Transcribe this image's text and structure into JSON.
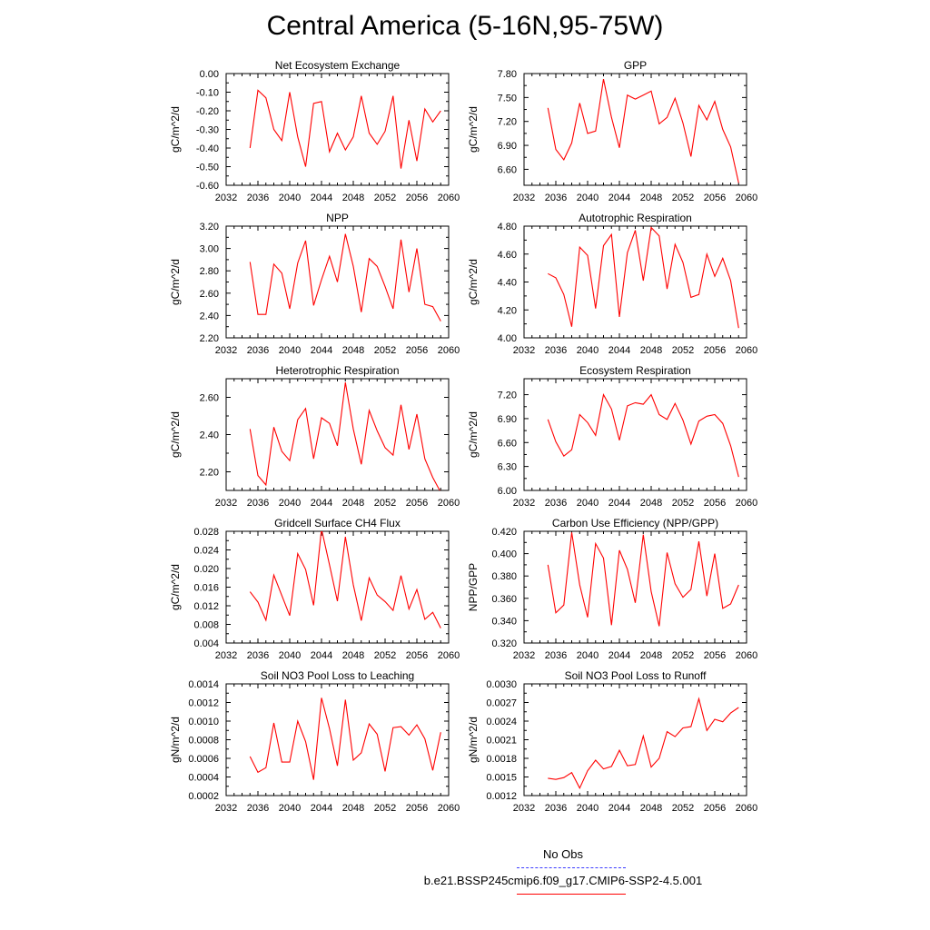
{
  "title": "Central America (5-16N,95-75W)",
  "colors": {
    "model_line": "#ff0000",
    "obs_line": "#3b3bff"
  },
  "legend": {
    "obs_label": "No Obs",
    "model_label": "b.e21.BSSP245cmip6.f09_g17.CMIP6-SSP2-4.5.001"
  },
  "chart_data": [
    {
      "type": "line",
      "title": "Net Ecosystem Exchange",
      "ylabel": "gC/m^2/d",
      "xlim": [
        2032,
        2060
      ],
      "ylim": [
        -0.6,
        0.0
      ],
      "yticks": [
        "0.00",
        "-0.10",
        "-0.20",
        "-0.30",
        "-0.40",
        "-0.50",
        "-0.60"
      ],
      "ytick_values": [
        0.0,
        -0.1,
        -0.2,
        -0.3,
        -0.4,
        -0.5,
        -0.6
      ],
      "xticks": [
        "2032",
        "2036",
        "2040",
        "2044",
        "2048",
        "2052",
        "2056",
        "2060"
      ],
      "x": [
        2035,
        2036,
        2037,
        2038,
        2039,
        2040,
        2041,
        2042,
        2043,
        2044,
        2045,
        2046,
        2047,
        2048,
        2049,
        2050,
        2051,
        2052,
        2053,
        2054,
        2055,
        2056,
        2057,
        2058,
        2059
      ],
      "values": [
        -0.4,
        -0.09,
        -0.13,
        -0.3,
        -0.36,
        -0.1,
        -0.34,
        -0.5,
        -0.16,
        -0.15,
        -0.42,
        -0.32,
        -0.41,
        -0.34,
        -0.12,
        -0.32,
        -0.38,
        -0.31,
        -0.12,
        -0.51,
        -0.25,
        -0.47,
        -0.19,
        -0.26,
        -0.2
      ]
    },
    {
      "type": "line",
      "title": "GPP",
      "ylabel": "gC/m^2/d",
      "xlim": [
        2032,
        2060
      ],
      "ylim": [
        6.4,
        7.8
      ],
      "yticks": [
        "7.80",
        "7.50",
        "7.20",
        "6.90",
        "6.60"
      ],
      "ytick_values": [
        7.8,
        7.5,
        7.2,
        6.9,
        6.6
      ],
      "xticks": [
        "2032",
        "2036",
        "2040",
        "2044",
        "2048",
        "2052",
        "2056",
        "2060"
      ],
      "x": [
        2035,
        2036,
        2037,
        2038,
        2039,
        2040,
        2041,
        2042,
        2043,
        2044,
        2045,
        2046,
        2047,
        2048,
        2049,
        2050,
        2051,
        2052,
        2053,
        2054,
        2055,
        2056,
        2057,
        2058,
        2059
      ],
      "values": [
        7.37,
        6.85,
        6.72,
        6.93,
        7.43,
        7.05,
        7.08,
        7.73,
        7.25,
        6.87,
        7.53,
        7.48,
        7.53,
        7.58,
        7.17,
        7.25,
        7.49,
        7.18,
        6.76,
        7.4,
        7.22,
        7.45,
        7.1,
        6.88,
        6.43
      ]
    },
    {
      "type": "line",
      "title": "NPP",
      "ylabel": "gC/m^2/d",
      "xlim": [
        2032,
        2060
      ],
      "ylim": [
        2.2,
        3.2
      ],
      "yticks": [
        "3.20",
        "3.00",
        "2.80",
        "2.60",
        "2.40",
        "2.20"
      ],
      "ytick_values": [
        3.2,
        3.0,
        2.8,
        2.6,
        2.4,
        2.2
      ],
      "xticks": [
        "2032",
        "2036",
        "2040",
        "2044",
        "2048",
        "2052",
        "2056",
        "2060"
      ],
      "x": [
        2035,
        2036,
        2037,
        2038,
        2039,
        2040,
        2041,
        2042,
        2043,
        2044,
        2045,
        2046,
        2047,
        2048,
        2049,
        2050,
        2051,
        2052,
        2053,
        2054,
        2055,
        2056,
        2057,
        2058,
        2059
      ],
      "values": [
        2.88,
        2.41,
        2.41,
        2.86,
        2.78,
        2.46,
        2.87,
        3.07,
        2.49,
        2.72,
        2.93,
        2.7,
        3.13,
        2.84,
        2.43,
        2.91,
        2.84,
        2.66,
        2.46,
        3.08,
        2.61,
        3.0,
        2.5,
        2.48,
        2.35
      ]
    },
    {
      "type": "line",
      "title": "Autotrophic Respiration",
      "ylabel": "gC/m^2/d",
      "xlim": [
        2032,
        2060
      ],
      "ylim": [
        4.0,
        4.8
      ],
      "yticks": [
        "4.80",
        "4.60",
        "4.40",
        "4.20",
        "4.00"
      ],
      "ytick_values": [
        4.8,
        4.6,
        4.4,
        4.2,
        4.0
      ],
      "xticks": [
        "2032",
        "2036",
        "2040",
        "2044",
        "2048",
        "2052",
        "2056",
        "2060"
      ],
      "x": [
        2035,
        2036,
        2037,
        2038,
        2039,
        2040,
        2041,
        2042,
        2043,
        2044,
        2045,
        2046,
        2047,
        2048,
        2049,
        2050,
        2051,
        2052,
        2053,
        2054,
        2055,
        2056,
        2057,
        2058,
        2059
      ],
      "values": [
        4.46,
        4.43,
        4.31,
        4.08,
        4.65,
        4.59,
        4.21,
        4.66,
        4.74,
        4.15,
        4.61,
        4.77,
        4.41,
        4.79,
        4.73,
        4.35,
        4.67,
        4.54,
        4.29,
        4.31,
        4.6,
        4.44,
        4.57,
        4.41,
        4.07
      ]
    },
    {
      "type": "line",
      "title": "Heterotrophic Respiration",
      "ylabel": "gC/m^2/d",
      "xlim": [
        2032,
        2060
      ],
      "ylim": [
        2.1,
        2.7
      ],
      "yticks": [
        "2.60",
        "2.40",
        "2.20"
      ],
      "ytick_values": [
        2.6,
        2.4,
        2.2
      ],
      "xticks": [
        "2032",
        "2036",
        "2040",
        "2044",
        "2048",
        "2052",
        "2056",
        "2060"
      ],
      "x": [
        2035,
        2036,
        2037,
        2038,
        2039,
        2040,
        2041,
        2042,
        2043,
        2044,
        2045,
        2046,
        2047,
        2048,
        2049,
        2050,
        2051,
        2052,
        2053,
        2054,
        2055,
        2056,
        2057,
        2058,
        2059
      ],
      "values": [
        2.43,
        2.18,
        2.13,
        2.44,
        2.31,
        2.26,
        2.48,
        2.54,
        2.27,
        2.49,
        2.46,
        2.34,
        2.68,
        2.43,
        2.24,
        2.53,
        2.42,
        2.33,
        2.29,
        2.56,
        2.32,
        2.51,
        2.27,
        2.17,
        2.09
      ]
    },
    {
      "type": "line",
      "title": "Ecosystem Respiration",
      "ylabel": "gC/m^2/d",
      "xlim": [
        2032,
        2060
      ],
      "ylim": [
        6.0,
        7.4
      ],
      "yticks": [
        "7.20",
        "6.90",
        "6.60",
        "6.30",
        "6.00"
      ],
      "ytick_values": [
        7.2,
        6.9,
        6.6,
        6.3,
        6.0
      ],
      "xticks": [
        "2032",
        "2036",
        "2040",
        "2044",
        "2048",
        "2052",
        "2056",
        "2060"
      ],
      "x": [
        2035,
        2036,
        2037,
        2038,
        2039,
        2040,
        2041,
        2042,
        2043,
        2044,
        2045,
        2046,
        2047,
        2048,
        2049,
        2050,
        2051,
        2052,
        2053,
        2054,
        2055,
        2056,
        2057,
        2058,
        2059
      ],
      "values": [
        6.89,
        6.61,
        6.43,
        6.51,
        6.95,
        6.85,
        6.69,
        7.2,
        7.02,
        6.63,
        7.06,
        7.1,
        7.08,
        7.2,
        6.95,
        6.89,
        7.09,
        6.88,
        6.58,
        6.87,
        6.93,
        6.95,
        6.84,
        6.56,
        6.17
      ]
    },
    {
      "type": "line",
      "title": "Gridcell Surface CH4 Flux",
      "ylabel": "gC/m^2/d",
      "xlim": [
        2032,
        2060
      ],
      "ylim": [
        0.004,
        0.028
      ],
      "yticks": [
        "0.028",
        "0.024",
        "0.020",
        "0.016",
        "0.012",
        "0.008",
        "0.004"
      ],
      "ytick_values": [
        0.028,
        0.024,
        0.02,
        0.016,
        0.012,
        0.008,
        0.004
      ],
      "xticks": [
        "2032",
        "2036",
        "2040",
        "2044",
        "2048",
        "2052",
        "2056",
        "2060"
      ],
      "x": [
        2035,
        2036,
        2037,
        2038,
        2039,
        2040,
        2041,
        2042,
        2043,
        2044,
        2045,
        2046,
        2047,
        2048,
        2049,
        2050,
        2051,
        2052,
        2053,
        2054,
        2055,
        2056,
        2057,
        2058,
        2059
      ],
      "values": [
        0.015,
        0.0128,
        0.0089,
        0.0186,
        0.0142,
        0.0099,
        0.0232,
        0.0198,
        0.0121,
        0.0285,
        0.0208,
        0.013,
        0.0268,
        0.0165,
        0.0088,
        0.018,
        0.0143,
        0.0129,
        0.011,
        0.0185,
        0.0113,
        0.0155,
        0.0091,
        0.0106,
        0.0072
      ]
    },
    {
      "type": "line",
      "title": "Carbon Use Efficiency (NPP/GPP)",
      "ylabel": "NPP/GPP",
      "xlim": [
        2032,
        2060
      ],
      "ylim": [
        0.32,
        0.42
      ],
      "yticks": [
        "0.420",
        "0.400",
        "0.380",
        "0.360",
        "0.340",
        "0.320"
      ],
      "ytick_values": [
        0.42,
        0.4,
        0.38,
        0.36,
        0.34,
        0.32
      ],
      "xticks": [
        "2032",
        "2036",
        "2040",
        "2044",
        "2048",
        "2052",
        "2056",
        "2060"
      ],
      "x": [
        2035,
        2036,
        2037,
        2038,
        2039,
        2040,
        2041,
        2042,
        2043,
        2044,
        2045,
        2046,
        2047,
        2048,
        2049,
        2050,
        2051,
        2052,
        2053,
        2054,
        2055,
        2056,
        2057,
        2058,
        2059
      ],
      "values": [
        0.39,
        0.347,
        0.354,
        0.419,
        0.372,
        0.343,
        0.409,
        0.396,
        0.336,
        0.403,
        0.386,
        0.356,
        0.417,
        0.366,
        0.335,
        0.401,
        0.373,
        0.361,
        0.368,
        0.411,
        0.362,
        0.4,
        0.351,
        0.355,
        0.372
      ]
    },
    {
      "type": "line",
      "title": "Soil NO3 Pool Loss to Leaching",
      "ylabel": "gN/m^2/d",
      "xlim": [
        2032,
        2060
      ],
      "ylim": [
        0.0002,
        0.0014
      ],
      "yticks": [
        "0.0014",
        "0.0012",
        "0.0010",
        "0.0008",
        "0.0006",
        "0.0004",
        "0.0002"
      ],
      "ytick_values": [
        0.0014,
        0.0012,
        0.001,
        0.0008,
        0.0006,
        0.0004,
        0.0002
      ],
      "xticks": [
        "2032",
        "2036",
        "2040",
        "2044",
        "2048",
        "2052",
        "2056",
        "2060"
      ],
      "x": [
        2035,
        2036,
        2037,
        2038,
        2039,
        2040,
        2041,
        2042,
        2043,
        2044,
        2045,
        2046,
        2047,
        2048,
        2049,
        2050,
        2051,
        2052,
        2053,
        2054,
        2055,
        2056,
        2057,
        2058,
        2059
      ],
      "values": [
        0.00062,
        0.00045,
        0.0005,
        0.00098,
        0.00056,
        0.00056,
        0.001,
        0.00078,
        0.00037,
        0.00125,
        0.00092,
        0.00052,
        0.00123,
        0.00058,
        0.00066,
        0.00097,
        0.00086,
        0.00046,
        0.00093,
        0.00094,
        0.00085,
        0.00096,
        0.00081,
        0.00047,
        0.00088
      ]
    },
    {
      "type": "line",
      "title": "Soil NO3 Pool Loss to Runoff",
      "ylabel": "gN/m^2/d",
      "xlim": [
        2032,
        2060
      ],
      "ylim": [
        0.0012,
        0.003
      ],
      "yticks": [
        "0.0030",
        "0.0027",
        "0.0024",
        "0.0021",
        "0.0018",
        "0.0015",
        "0.0012"
      ],
      "ytick_values": [
        0.003,
        0.0027,
        0.0024,
        0.0021,
        0.0018,
        0.0015,
        0.0012
      ],
      "xticks": [
        "2032",
        "2036",
        "2040",
        "2044",
        "2048",
        "2052",
        "2056",
        "2060"
      ],
      "x": [
        2035,
        2036,
        2037,
        2038,
        2039,
        2040,
        2041,
        2042,
        2043,
        2044,
        2045,
        2046,
        2047,
        2048,
        2049,
        2050,
        2051,
        2052,
        2053,
        2054,
        2055,
        2056,
        2057,
        2058,
        2059
      ],
      "values": [
        0.00148,
        0.00146,
        0.00149,
        0.00157,
        0.00132,
        0.0016,
        0.00177,
        0.00163,
        0.00167,
        0.00193,
        0.00168,
        0.0017,
        0.00216,
        0.00166,
        0.0018,
        0.00223,
        0.00215,
        0.00229,
        0.00231,
        0.00276,
        0.00225,
        0.00243,
        0.00239,
        0.00253,
        0.00262
      ]
    }
  ]
}
